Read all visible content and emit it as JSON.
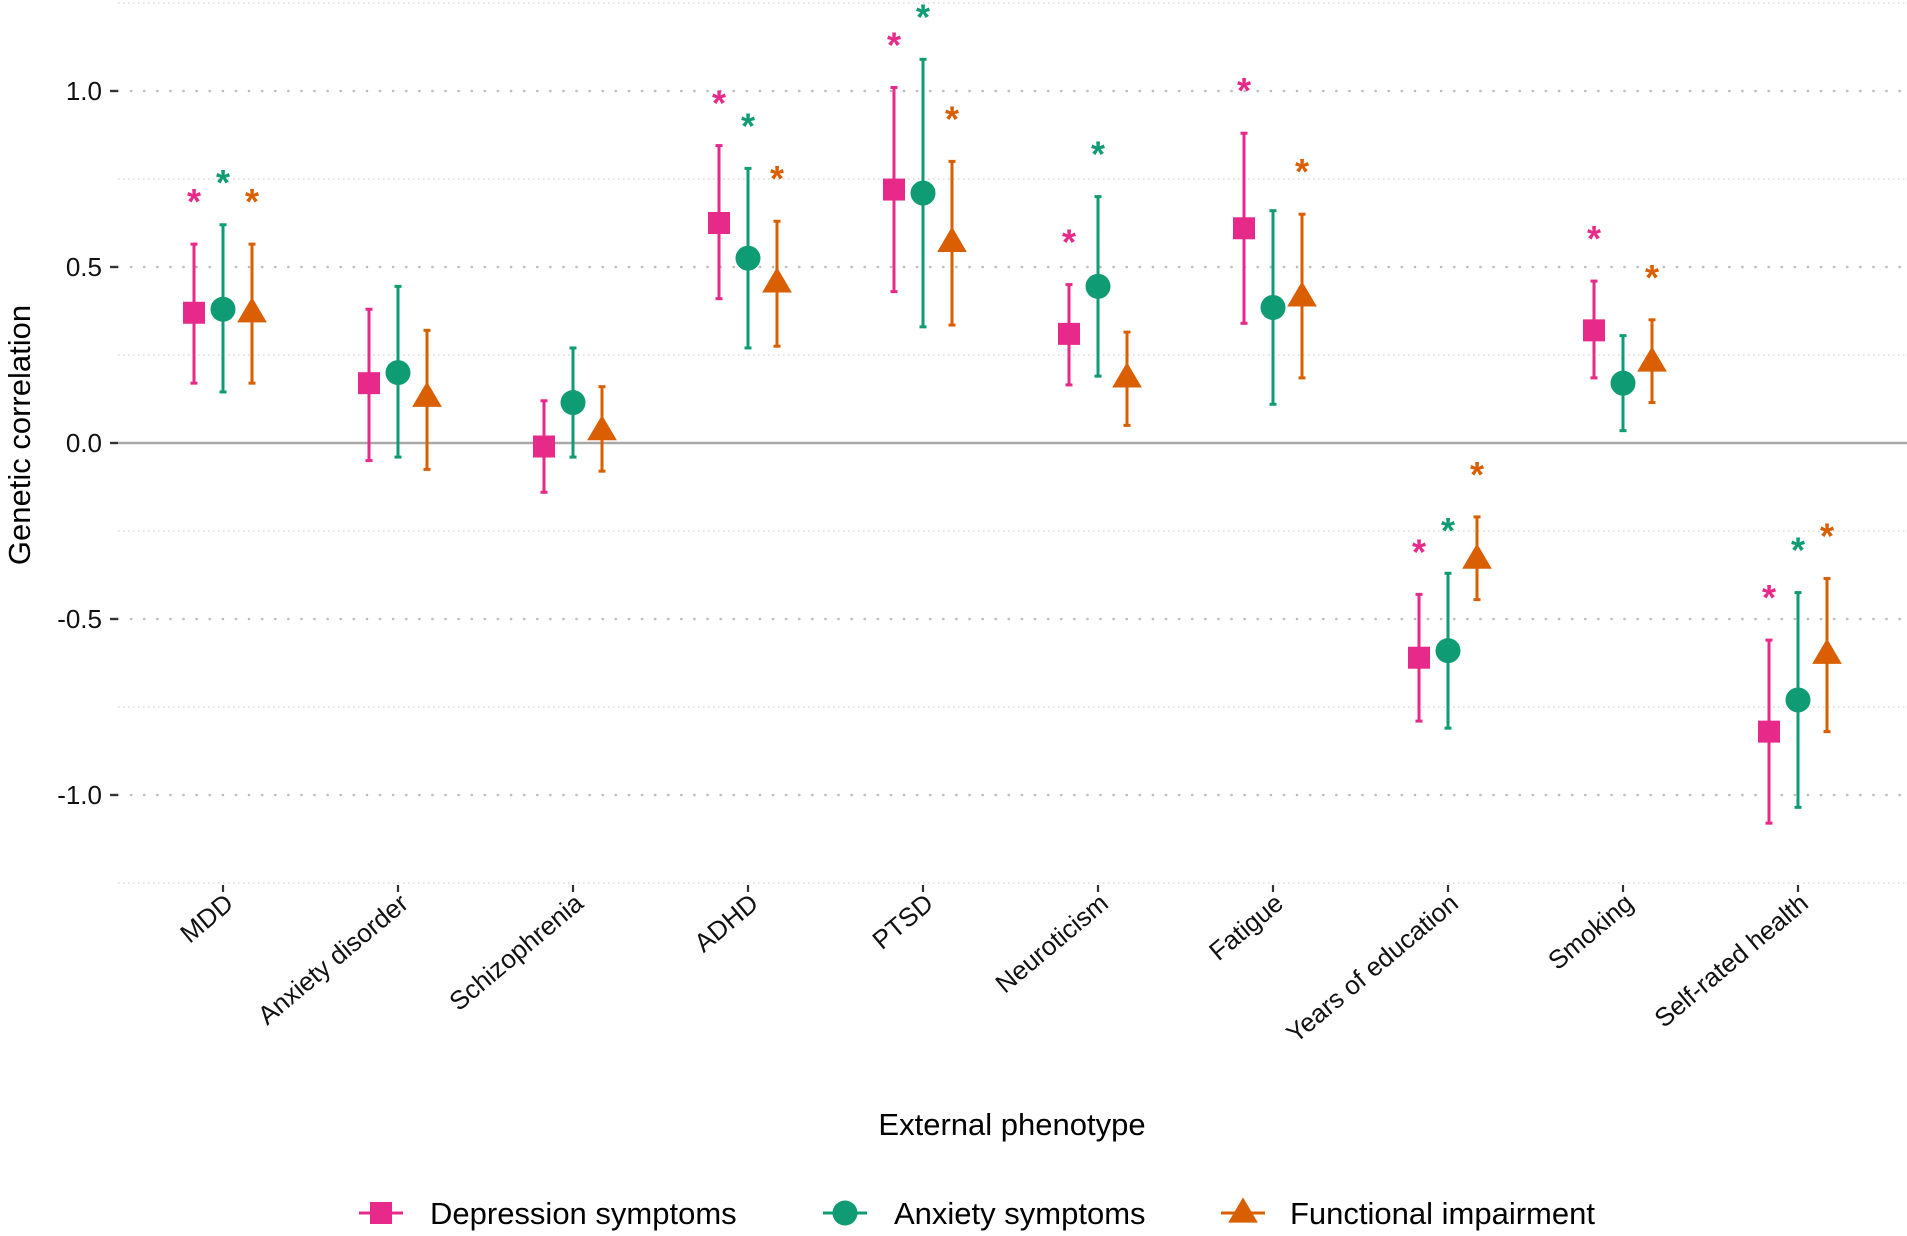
{
  "chart_data": {
    "type": "scatter",
    "subtype": "point-errorbar",
    "title": "",
    "xlabel": "External phenotype",
    "ylabel": "Genetic correlation",
    "ylim": [
      -1.25,
      1.25
    ],
    "yticks": [
      1.0,
      0.5,
      0.0,
      -0.5,
      -1.0
    ],
    "ytick_labels": [
      "1.0",
      "0.5",
      "0.0",
      "-0.5",
      "-1.0"
    ],
    "minor_gridlines": [
      1.25,
      0.75,
      0.25,
      -0.25,
      -0.75,
      -1.25
    ],
    "grid": true,
    "reference_line": 0.0,
    "legend_position": "bottom",
    "significance_marker": "*",
    "categories": [
      "MDD",
      "Anxiety disorder",
      "Schizophrenia",
      "ADHD",
      "PTSD",
      "Neuroticism",
      "Fatigue",
      "Years of education",
      "Smoking",
      "Self-rated health"
    ],
    "series": [
      {
        "name": "Depression symptoms",
        "color": "#E7298A",
        "marker": "square",
        "values": [
          0.37,
          0.17,
          -0.01,
          0.625,
          0.72,
          0.31,
          0.61,
          -0.61,
          0.32,
          -0.82
        ],
        "ci_lower": [
          0.17,
          -0.05,
          -0.14,
          0.41,
          0.43,
          0.165,
          0.34,
          -0.79,
          0.185,
          -1.08
        ],
        "ci_upper": [
          0.565,
          0.38,
          0.12,
          0.845,
          1.01,
          0.45,
          0.88,
          -0.43,
          0.46,
          -0.56
        ],
        "significant": [
          true,
          false,
          false,
          true,
          true,
          true,
          true,
          true,
          true,
          true
        ]
      },
      {
        "name": "Anxiety symptoms",
        "color": "#0F9B74",
        "marker": "circle",
        "values": [
          0.38,
          0.2,
          0.115,
          0.525,
          0.71,
          0.445,
          0.385,
          -0.59,
          0.17,
          -0.73
        ],
        "ci_lower": [
          0.145,
          -0.04,
          -0.04,
          0.27,
          0.33,
          0.19,
          0.11,
          -0.81,
          0.035,
          -1.035
        ],
        "ci_upper": [
          0.62,
          0.445,
          0.27,
          0.78,
          1.09,
          0.7,
          0.66,
          -0.37,
          0.305,
          -0.425
        ],
        "significant": [
          true,
          false,
          false,
          true,
          true,
          true,
          false,
          true,
          false,
          true
        ]
      },
      {
        "name": "Functional impairment",
        "color": "#D95F02",
        "marker": "triangle",
        "values": [
          0.37,
          0.13,
          0.035,
          0.455,
          0.57,
          0.185,
          0.415,
          -0.33,
          0.23,
          -0.6
        ],
        "ci_lower": [
          0.17,
          -0.075,
          -0.08,
          0.275,
          0.335,
          0.05,
          0.185,
          -0.445,
          0.115,
          -0.82
        ],
        "ci_upper": [
          0.565,
          0.32,
          0.16,
          0.63,
          0.8,
          0.315,
          0.65,
          -0.21,
          0.35,
          -0.385
        ],
        "significant": [
          true,
          false,
          false,
          true,
          true,
          false,
          true,
          true,
          true,
          true
        ]
      }
    ]
  }
}
